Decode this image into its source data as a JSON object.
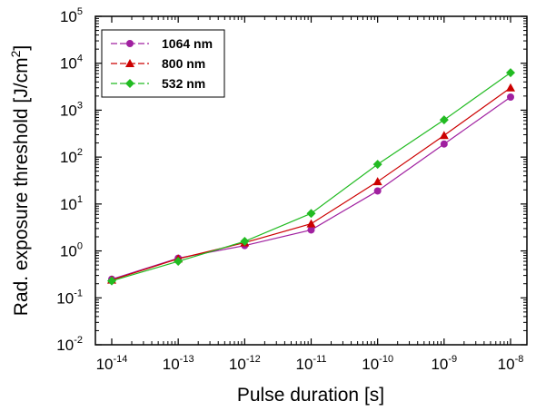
{
  "chart_data": {
    "type": "line",
    "xscale": "log",
    "yscale": "log",
    "xlabel": "Pulse duration [s]",
    "ylabel": "Rad. exposure threshold [J/cm²]",
    "ylabel_parts": {
      "main": "Rad. exposure threshold [J/cm",
      "sup": "2",
      "end": "]"
    },
    "xlim": [
      1e-14,
      1e-08
    ],
    "ylim": [
      0.01,
      100000
    ],
    "x_ticks": [
      {
        "base": "10",
        "exp": "-14"
      },
      {
        "base": "10",
        "exp": "-13"
      },
      {
        "base": "10",
        "exp": "-12"
      },
      {
        "base": "10",
        "exp": "-11"
      },
      {
        "base": "10",
        "exp": "-10"
      },
      {
        "base": "10",
        "exp": "-9"
      },
      {
        "base": "10",
        "exp": "-8"
      }
    ],
    "y_ticks": [
      {
        "base": "10",
        "exp": "-2"
      },
      {
        "base": "10",
        "exp": "-1"
      },
      {
        "base": "10",
        "exp": "0"
      },
      {
        "base": "10",
        "exp": "1"
      },
      {
        "base": "10",
        "exp": "2"
      },
      {
        "base": "10",
        "exp": "3"
      },
      {
        "base": "10",
        "exp": "4"
      },
      {
        "base": "10",
        "exp": "5"
      }
    ],
    "x": [
      1e-14,
      1e-13,
      1e-12,
      1e-11,
      1e-10,
      1e-09,
      1e-08
    ],
    "legend_position": "top-left",
    "grid": false,
    "series": [
      {
        "name": "1064 nm",
        "color": "#a020a0",
        "marker": "circle",
        "values": [
          0.25,
          0.7,
          1.3,
          2.8,
          19,
          190,
          1900
        ]
      },
      {
        "name": "800 nm",
        "color": "#cc0000",
        "marker": "triangle",
        "values": [
          0.24,
          0.68,
          1.5,
          3.8,
          30,
          290,
          3000
        ]
      },
      {
        "name": "532 nm",
        "color": "#22bb22",
        "marker": "diamond",
        "values": [
          0.23,
          0.6,
          1.6,
          6.3,
          70,
          620,
          6300
        ]
      }
    ]
  }
}
